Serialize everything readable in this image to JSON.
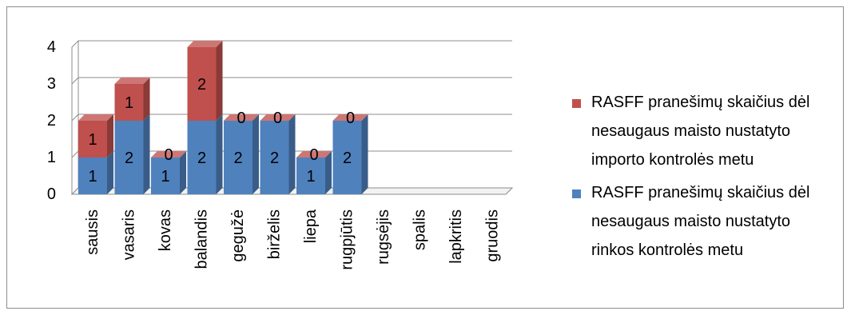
{
  "chart_data": {
    "type": "bar",
    "stacked": true,
    "three_d": true,
    "categories": [
      "sausis",
      "vasaris",
      "kovas",
      "balandis",
      "gegužė",
      "birželis",
      "liepa",
      "rugpjūtis",
      "rugsėjis",
      "spalis",
      "lapkritis",
      "gruodis"
    ],
    "series": [
      {
        "name": "RASFF pranešimų skaičius dėl nesaugaus maisto nustatyto rinkos kontrolės metu",
        "color": "#4f81bd",
        "values": [
          1,
          2,
          1,
          2,
          2,
          2,
          1,
          2,
          null,
          null,
          null,
          null
        ],
        "labels": [
          "1",
          "2",
          "1",
          "2",
          "2",
          "2",
          "1",
          "2",
          "",
          "",
          "",
          ""
        ]
      },
      {
        "name": "RASFF pranešimų skaičius dėl nesaugaus maisto nustatyto importo kontrolės metu",
        "color": "#c0504d",
        "values": [
          1,
          1,
          0,
          2,
          0,
          0,
          0,
          0,
          null,
          null,
          null,
          null
        ],
        "labels": [
          "1",
          "1",
          "0",
          "2",
          "0",
          "0",
          "0",
          "0",
          "",
          "",
          "",
          ""
        ]
      }
    ],
    "y_ticks": [
      "0",
      "1",
      "2",
      "3",
      "4"
    ],
    "ylim": [
      0,
      4
    ],
    "grid": true,
    "legend_position": "right"
  },
  "legend": {
    "items": [
      {
        "color": "#c0504d",
        "lines": [
          "RASFF pranešimų skaičius dėl",
          "nesaugaus maisto nustatyto",
          "importo kontrolės metu"
        ]
      },
      {
        "color": "#4f81bd",
        "lines": [
          "RASFF pranešimų skaičius dėl",
          "nesaugaus maisto nustatyto",
          "rinkos kontrolės metu"
        ]
      }
    ]
  }
}
